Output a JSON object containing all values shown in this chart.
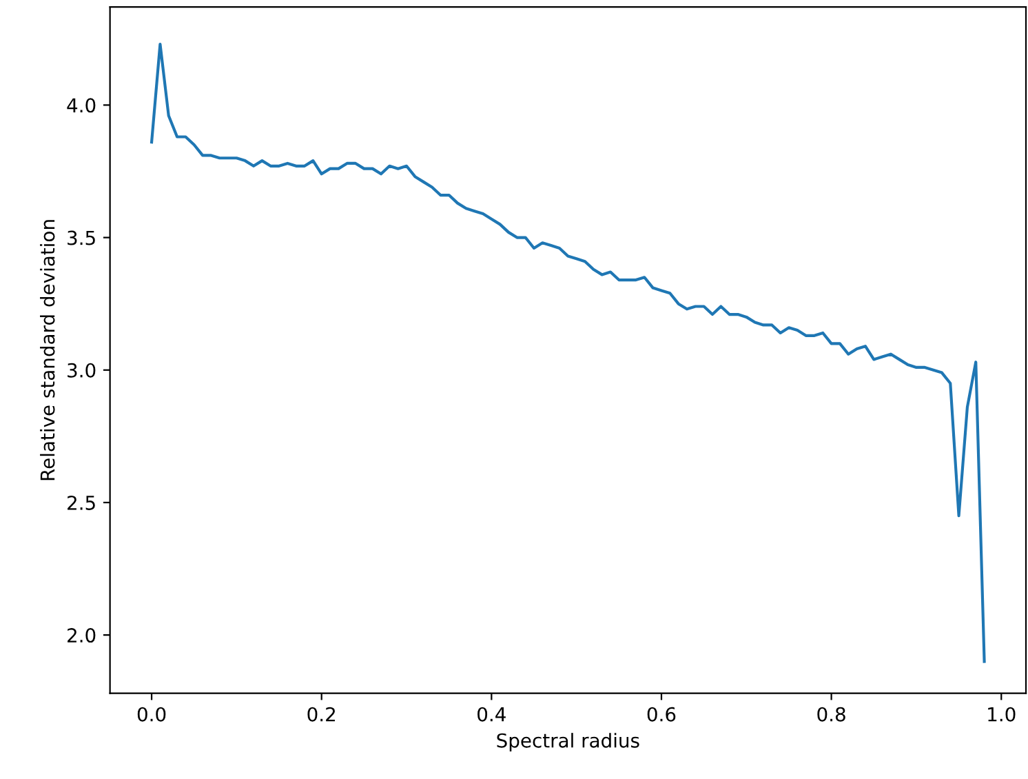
{
  "chart_data": {
    "type": "line",
    "xlabel": "Spectral radius",
    "ylabel": "Relative standard deviation",
    "x": [
      0.0,
      0.01,
      0.02,
      0.03,
      0.04,
      0.05,
      0.06,
      0.07,
      0.08,
      0.09,
      0.1,
      0.11,
      0.12,
      0.13,
      0.14,
      0.15,
      0.16,
      0.17,
      0.18,
      0.19,
      0.2,
      0.21,
      0.22,
      0.23,
      0.24,
      0.25,
      0.26,
      0.27,
      0.28,
      0.29,
      0.3,
      0.31,
      0.32,
      0.33,
      0.34,
      0.35,
      0.36,
      0.37,
      0.38,
      0.39,
      0.4,
      0.41,
      0.42,
      0.43,
      0.44,
      0.45,
      0.46,
      0.47,
      0.48,
      0.49,
      0.5,
      0.51,
      0.52,
      0.53,
      0.54,
      0.55,
      0.56,
      0.57,
      0.58,
      0.59,
      0.6,
      0.61,
      0.62,
      0.63,
      0.64,
      0.65,
      0.66,
      0.67,
      0.68,
      0.69,
      0.7,
      0.71,
      0.72,
      0.73,
      0.74,
      0.75,
      0.76,
      0.77,
      0.78,
      0.79,
      0.8,
      0.81,
      0.82,
      0.83,
      0.84,
      0.85,
      0.86,
      0.87,
      0.88,
      0.89,
      0.9,
      0.91,
      0.92,
      0.93,
      0.94,
      0.95,
      0.96,
      0.97,
      0.98
    ],
    "series": [
      {
        "color": "#1f77b4",
        "values": [
          3.86,
          4.23,
          3.96,
          3.88,
          3.88,
          3.85,
          3.81,
          3.81,
          3.8,
          3.8,
          3.8,
          3.79,
          3.77,
          3.79,
          3.77,
          3.77,
          3.78,
          3.77,
          3.77,
          3.79,
          3.74,
          3.76,
          3.76,
          3.78,
          3.78,
          3.76,
          3.76,
          3.74,
          3.77,
          3.76,
          3.77,
          3.73,
          3.71,
          3.69,
          3.66,
          3.66,
          3.63,
          3.61,
          3.6,
          3.59,
          3.57,
          3.55,
          3.52,
          3.5,
          3.5,
          3.46,
          3.48,
          3.47,
          3.46,
          3.43,
          3.42,
          3.41,
          3.38,
          3.36,
          3.37,
          3.34,
          3.34,
          3.34,
          3.35,
          3.31,
          3.3,
          3.29,
          3.25,
          3.23,
          3.24,
          3.24,
          3.21,
          3.24,
          3.21,
          3.21,
          3.2,
          3.18,
          3.17,
          3.17,
          3.14,
          3.16,
          3.15,
          3.13,
          3.13,
          3.14,
          3.1,
          3.1,
          3.06,
          3.08,
          3.09,
          3.04,
          3.05,
          3.06,
          3.04,
          3.02,
          3.01,
          3.01,
          3.0,
          2.99,
          2.95,
          2.45,
          2.86,
          3.03,
          1.9
        ]
      }
    ],
    "xlim": [
      -0.049,
      1.029
    ],
    "ylim": [
      1.78,
      4.37
    ],
    "xticks": [
      {
        "value": 0,
        "label": "0.0"
      },
      0.2,
      0.4,
      0.6,
      0.8,
      {
        "value": 1,
        "label": "1.0"
      }
    ],
    "yticks": [
      {
        "value": 2,
        "label": "2.0"
      },
      2.5,
      {
        "value": 3,
        "label": "3.0"
      },
      3.5,
      {
        "value": 4,
        "label": "4.0"
      }
    ],
    "grid": false,
    "legend": false
  }
}
